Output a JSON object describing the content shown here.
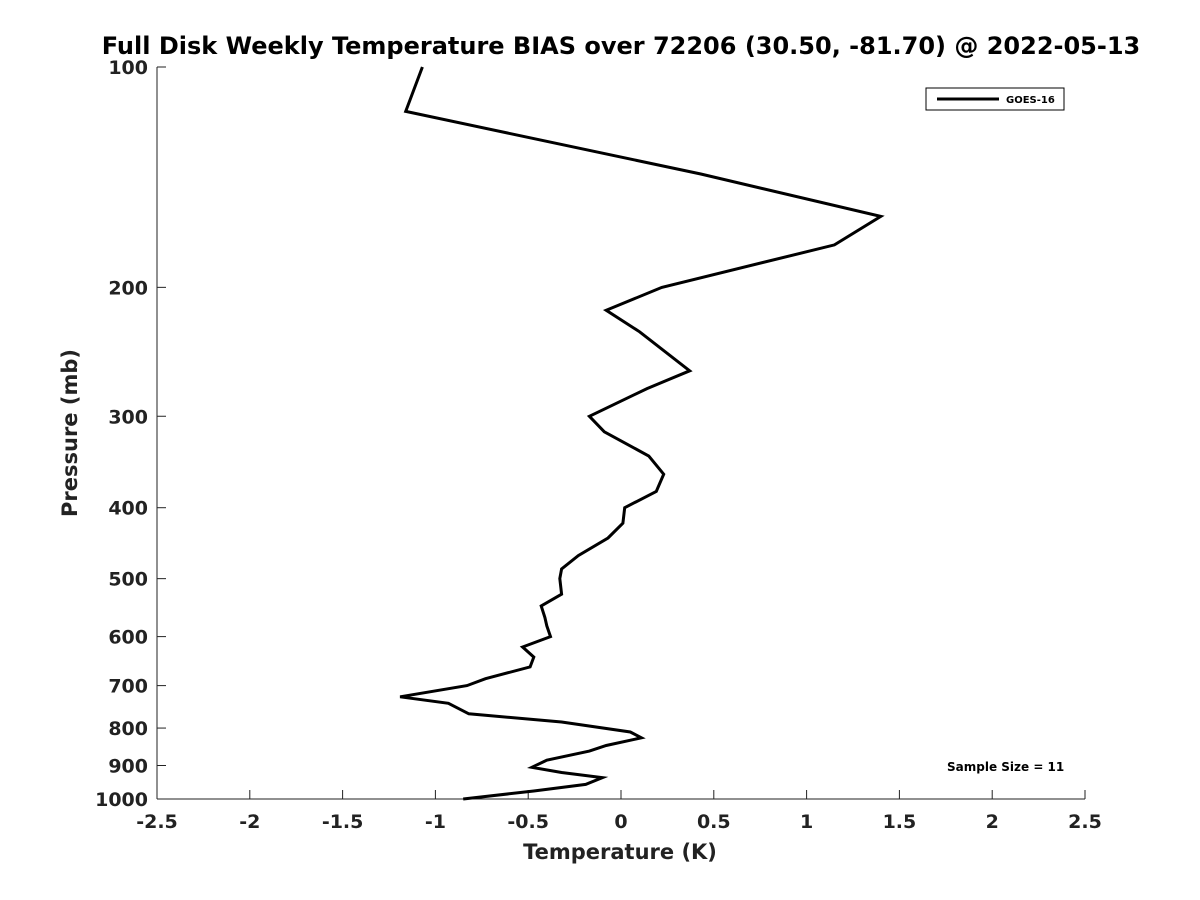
{
  "chart_data": {
    "type": "line",
    "title": "Full Disk Weekly Temperature BIAS over 72206 (30.50, -81.70) @ 2022-05-13",
    "xlabel": "Temperature (K)",
    "ylabel": "Pressure (mb)",
    "xlim": [
      -2.5,
      2.5
    ],
    "ylim": [
      100,
      1000
    ],
    "y_scale": "log",
    "y_reversed": true,
    "grid": false,
    "legend_position": "top-right",
    "x_ticks": [
      "-2.5",
      "-2",
      "-1.5",
      "-1",
      "-0.5",
      "0",
      "0.5",
      "1",
      "1.5",
      "2",
      "2.5"
    ],
    "x_tick_values": [
      -2.5,
      -2,
      -1.5,
      -1,
      -0.5,
      0,
      0.5,
      1,
      1.5,
      2,
      2.5
    ],
    "y_ticks": [
      "100",
      "200",
      "300",
      "400",
      "500",
      "600",
      "700",
      "800",
      "900",
      "1000"
    ],
    "y_tick_values": [
      100,
      200,
      300,
      400,
      500,
      600,
      700,
      800,
      900,
      1000
    ],
    "series": [
      {
        "name": "GOES-16",
        "color": "#000000",
        "points": [
          {
            "x": -1.07,
            "p": 100
          },
          {
            "x": -1.16,
            "p": 115
          },
          {
            "x": 0.43,
            "p": 140
          },
          {
            "x": 1.4,
            "p": 160
          },
          {
            "x": 1.15,
            "p": 175
          },
          {
            "x": 0.22,
            "p": 200
          },
          {
            "x": -0.08,
            "p": 215
          },
          {
            "x": 0.1,
            "p": 230
          },
          {
            "x": 0.37,
            "p": 260
          },
          {
            "x": 0.14,
            "p": 275
          },
          {
            "x": -0.17,
            "p": 300
          },
          {
            "x": -0.09,
            "p": 315
          },
          {
            "x": 0.15,
            "p": 340
          },
          {
            "x": 0.23,
            "p": 360
          },
          {
            "x": 0.19,
            "p": 380
          },
          {
            "x": 0.02,
            "p": 400
          },
          {
            "x": 0.01,
            "p": 420
          },
          {
            "x": -0.07,
            "p": 440
          },
          {
            "x": -0.23,
            "p": 465
          },
          {
            "x": -0.32,
            "p": 485
          },
          {
            "x": -0.33,
            "p": 500
          },
          {
            "x": -0.32,
            "p": 525
          },
          {
            "x": -0.43,
            "p": 545
          },
          {
            "x": -0.41,
            "p": 565
          },
          {
            "x": -0.4,
            "p": 580
          },
          {
            "x": -0.38,
            "p": 600
          },
          {
            "x": -0.53,
            "p": 620
          },
          {
            "x": -0.47,
            "p": 640
          },
          {
            "x": -0.49,
            "p": 660
          },
          {
            "x": -0.73,
            "p": 685
          },
          {
            "x": -0.83,
            "p": 700
          },
          {
            "x": -1.19,
            "p": 725
          },
          {
            "x": -0.93,
            "p": 740
          },
          {
            "x": -0.82,
            "p": 765
          },
          {
            "x": -0.32,
            "p": 785
          },
          {
            "x": 0.05,
            "p": 810
          },
          {
            "x": 0.11,
            "p": 825
          },
          {
            "x": -0.08,
            "p": 845
          },
          {
            "x": -0.17,
            "p": 860
          },
          {
            "x": -0.4,
            "p": 885
          },
          {
            "x": -0.48,
            "p": 905
          },
          {
            "x": -0.32,
            "p": 920
          },
          {
            "x": -0.1,
            "p": 935
          },
          {
            "x": -0.19,
            "p": 955
          },
          {
            "x": -0.47,
            "p": 975
          },
          {
            "x": -0.85,
            "p": 1000
          }
        ]
      }
    ],
    "legend": [
      {
        "label": "GOES-16",
        "color": "#000000"
      }
    ],
    "annotations": [
      {
        "text": "Sample Size = 11",
        "position": "bottom-right"
      }
    ]
  }
}
